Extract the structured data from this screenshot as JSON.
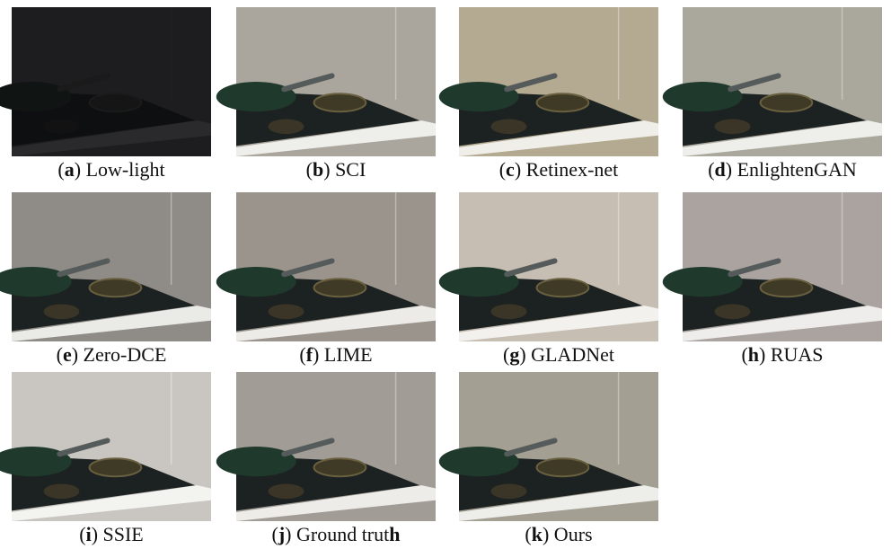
{
  "figure": {
    "panels": [
      {
        "tone": "#1d1c1e",
        "caption": [
          {
            "text": "(",
            "bold": false
          },
          {
            "text": "a",
            "bold": true
          },
          {
            "text": ") Low-light",
            "bold": false
          }
        ]
      },
      {
        "tone": "#aaa59d",
        "caption": [
          {
            "text": "(",
            "bold": false
          },
          {
            "text": "b",
            "bold": true
          },
          {
            "text": ") SCI",
            "bold": false
          }
        ]
      },
      {
        "tone": "#b4aa92",
        "caption": [
          {
            "text": "(",
            "bold": false
          },
          {
            "text": "c",
            "bold": true
          },
          {
            "text": ") Retinex-net",
            "bold": false
          }
        ]
      },
      {
        "tone": "#aaa89c",
        "caption": [
          {
            "text": "(",
            "bold": false
          },
          {
            "text": "d",
            "bold": true
          },
          {
            "text": ") EnlightenGAN",
            "bold": false
          }
        ]
      },
      {
        "tone": "#8f8b86",
        "caption": [
          {
            "text": "(",
            "bold": false
          },
          {
            "text": "e",
            "bold": true
          },
          {
            "text": ") Zero-DCE",
            "bold": false
          }
        ]
      },
      {
        "tone": "#9b948c",
        "caption": [
          {
            "text": "(",
            "bold": false
          },
          {
            "text": "f",
            "bold": true
          },
          {
            "text": ") LIME",
            "bold": false
          }
        ]
      },
      {
        "tone": "#c6beb3",
        "caption": [
          {
            "text": "(",
            "bold": false
          },
          {
            "text": "g",
            "bold": true
          },
          {
            "text": ") GLADNet",
            "bold": false
          }
        ]
      },
      {
        "tone": "#aaa3a0",
        "caption": [
          {
            "text": "(",
            "bold": false
          },
          {
            "text": "h",
            "bold": true
          },
          {
            "text": ") RUAS",
            "bold": false
          }
        ]
      },
      {
        "tone": "#c9c6c1",
        "caption": [
          {
            "text": "(",
            "bold": false
          },
          {
            "text": "i",
            "bold": true
          },
          {
            "text": ") SSIE",
            "bold": false
          }
        ]
      },
      {
        "tone": "#a19c96",
        "caption": [
          {
            "text": "(",
            "bold": false
          },
          {
            "text": "j",
            "bold": true
          },
          {
            "text": ") Ground trut",
            "bold": false
          },
          {
            "text": "h",
            "bold": true
          }
        ]
      },
      {
        "tone": "#a49f93",
        "caption": [
          {
            "text": "(",
            "bold": false
          },
          {
            "text": "k",
            "bold": true
          },
          {
            "text": ") Ours",
            "bold": false
          }
        ]
      }
    ]
  }
}
